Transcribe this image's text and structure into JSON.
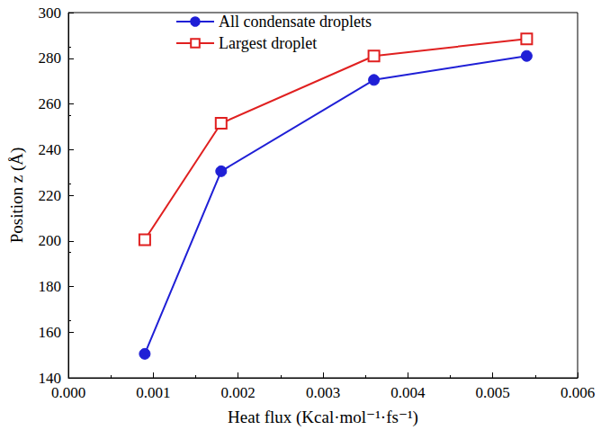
{
  "chart_data": {
    "type": "line",
    "x_label": "Heat flux (Kcal·mol⁻¹·fs⁻¹)",
    "y_label": "Position z (Å)",
    "series": [
      {
        "name": "All condensate droplets",
        "color": "#1f1fd6",
        "marker": "circle",
        "x": [
          0.0009,
          0.0018,
          0.0036,
          0.0054
        ],
        "values": [
          150.5,
          230.5,
          270.5,
          281
        ]
      },
      {
        "name": "Largest droplet",
        "color": "#e02020",
        "marker": "square",
        "x": [
          0.0009,
          0.0018,
          0.0036,
          0.0054
        ],
        "values": [
          200.5,
          251.5,
          281,
          288.5
        ]
      }
    ],
    "xlim": [
      0,
      0.006
    ],
    "xticks": [
      {
        "value": 0,
        "label": "0.000"
      },
      {
        "value": 0.001,
        "label": "0.001"
      },
      {
        "value": 0.002,
        "label": "0.002"
      },
      {
        "value": 0.003,
        "label": "0.003"
      },
      {
        "value": 0.004,
        "label": "0.004"
      },
      {
        "value": 0.005,
        "label": "0.005"
      },
      {
        "value": 0.006,
        "label": "0.006"
      }
    ],
    "ylim": [
      140,
      300
    ],
    "yticks": [
      140,
      160,
      180,
      200,
      220,
      240,
      260,
      280,
      300
    ],
    "grid": false,
    "legend": "top"
  }
}
